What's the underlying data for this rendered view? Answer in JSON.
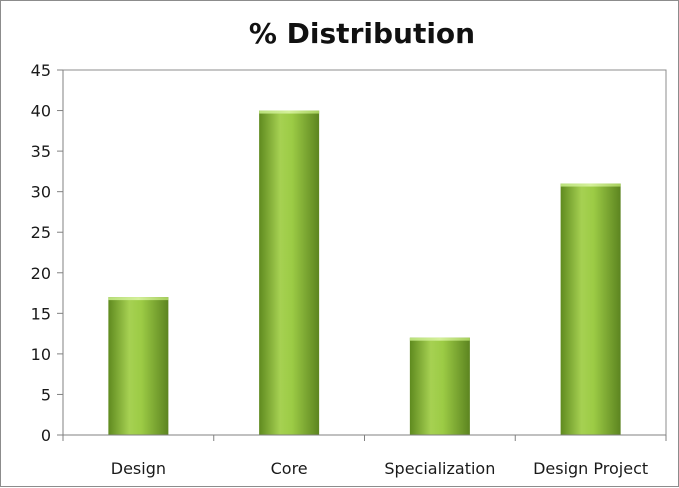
{
  "chart_data": {
    "type": "bar",
    "title": "% Distribution",
    "xlabel": "",
    "ylabel": "",
    "categories": [
      "Design",
      "Core",
      "Specialization",
      "Design Project"
    ],
    "values": [
      17,
      40,
      12,
      31
    ],
    "ylim": [
      0,
      45
    ],
    "yticks": [
      0,
      5,
      10,
      15,
      20,
      25,
      30,
      35,
      40,
      45
    ],
    "grid": false,
    "legend": "none",
    "bar_color": "#8cb83a"
  }
}
